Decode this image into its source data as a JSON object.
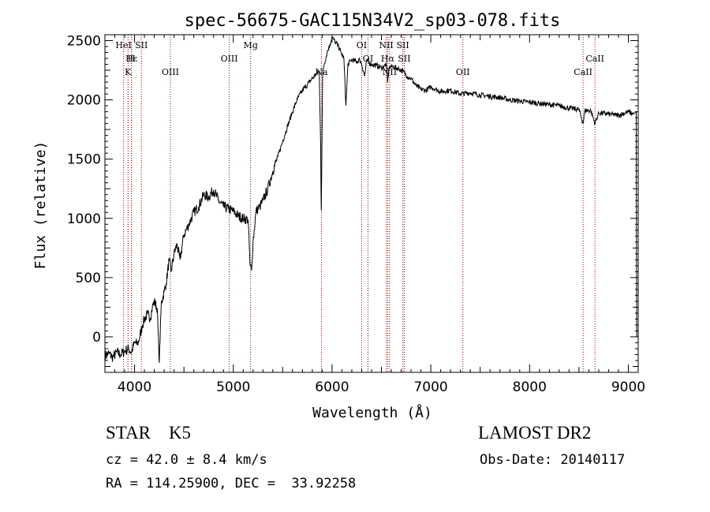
{
  "chart_data": {
    "type": "line",
    "title": "spec-56675-GAC115N34V2_sp03-078.fits",
    "xlabel": "Wavelength (Å)",
    "ylabel": "Flux (relative)",
    "xlim": [
      3700,
      9100
    ],
    "ylim": [
      -300,
      2550
    ],
    "x_ticks": [
      4000,
      5000,
      6000,
      7000,
      8000,
      9000
    ],
    "y_ticks": [
      0,
      500,
      1000,
      1500,
      2000,
      2500
    ],
    "grid": false,
    "line_color": "#000000",
    "marker_color": "#8b0000",
    "series": [
      {
        "points": [
          [
            3700,
            -160
          ],
          [
            3740,
            -140
          ],
          [
            3780,
            -175
          ],
          [
            3820,
            -130
          ],
          [
            3860,
            -150
          ],
          [
            3900,
            -120
          ],
          [
            3940,
            -100
          ],
          [
            3970,
            -130
          ],
          [
            4000,
            -50
          ],
          [
            4030,
            -60
          ],
          [
            4050,
            -10
          ],
          [
            4080,
            100
          ],
          [
            4100,
            150
          ],
          [
            4130,
            190
          ],
          [
            4160,
            160
          ],
          [
            4180,
            250
          ],
          [
            4200,
            300
          ],
          [
            4230,
            240
          ],
          [
            4250,
            -220
          ],
          [
            4270,
            280
          ],
          [
            4300,
            380
          ],
          [
            4320,
            450
          ],
          [
            4350,
            650
          ],
          [
            4370,
            550
          ],
          [
            4400,
            700
          ],
          [
            4430,
            780
          ],
          [
            4460,
            650
          ],
          [
            4500,
            860
          ],
          [
            4550,
            950
          ],
          [
            4600,
            1050
          ],
          [
            4650,
            1100
          ],
          [
            4700,
            1200
          ],
          [
            4750,
            1180
          ],
          [
            4800,
            1240
          ],
          [
            4850,
            1150
          ],
          [
            4900,
            1100
          ],
          [
            4950,
            1080
          ],
          [
            5000,
            1060
          ],
          [
            5050,
            1020
          ],
          [
            5100,
            1000
          ],
          [
            5150,
            990
          ],
          [
            5170,
            600
          ],
          [
            5185,
            560
          ],
          [
            5200,
            800
          ],
          [
            5230,
            1060
          ],
          [
            5270,
            1100
          ],
          [
            5300,
            1150
          ],
          [
            5350,
            1250
          ],
          [
            5400,
            1400
          ],
          [
            5450,
            1520
          ],
          [
            5500,
            1650
          ],
          [
            5550,
            1780
          ],
          [
            5600,
            1900
          ],
          [
            5650,
            2010
          ],
          [
            5700,
            2080
          ],
          [
            5750,
            2130
          ],
          [
            5800,
            2180
          ],
          [
            5840,
            2220
          ],
          [
            5870,
            2240
          ],
          [
            5885,
            1600
          ],
          [
            5890,
            1070
          ],
          [
            5895,
            1400
          ],
          [
            5905,
            2240
          ],
          [
            5920,
            2300
          ],
          [
            5950,
            2400
          ],
          [
            5980,
            2470
          ],
          [
            6000,
            2530
          ],
          [
            6030,
            2490
          ],
          [
            6060,
            2460
          ],
          [
            6090,
            2400
          ],
          [
            6120,
            2350
          ],
          [
            6140,
            1950
          ],
          [
            6160,
            2300
          ],
          [
            6200,
            2340
          ],
          [
            6250,
            2320
          ],
          [
            6280,
            2340
          ],
          [
            6300,
            2300
          ],
          [
            6330,
            2200
          ],
          [
            6350,
            2330
          ],
          [
            6400,
            2300
          ],
          [
            6450,
            2290
          ],
          [
            6500,
            2270
          ],
          [
            6550,
            2300
          ],
          [
            6563,
            2150
          ],
          [
            6580,
            2280
          ],
          [
            6620,
            2280
          ],
          [
            6680,
            2260
          ],
          [
            6720,
            2240
          ],
          [
            6760,
            2200
          ],
          [
            6800,
            2180
          ],
          [
            6850,
            2120
          ],
          [
            6900,
            2090
          ],
          [
            6950,
            2080
          ],
          [
            7000,
            2110
          ],
          [
            7050,
            2090
          ],
          [
            7100,
            2070
          ],
          [
            7200,
            2080
          ],
          [
            7300,
            2050
          ],
          [
            7400,
            2060
          ],
          [
            7500,
            2040
          ],
          [
            7600,
            2030
          ],
          [
            7700,
            2020
          ],
          [
            7800,
            2000
          ],
          [
            7900,
            1990
          ],
          [
            8000,
            1980
          ],
          [
            8100,
            1970
          ],
          [
            8200,
            1960
          ],
          [
            8300,
            1950
          ],
          [
            8400,
            1930
          ],
          [
            8500,
            1920
          ],
          [
            8542,
            1800
          ],
          [
            8560,
            1910
          ],
          [
            8620,
            1910
          ],
          [
            8662,
            1800
          ],
          [
            8700,
            1890
          ],
          [
            8800,
            1880
          ],
          [
            8900,
            1870
          ],
          [
            9000,
            1900
          ],
          [
            9050,
            1880
          ]
        ]
      }
    ],
    "spectral_lines": [
      {
        "label": "Hε",
        "wavelength": 3970,
        "row": 2
      },
      {
        "label": "HeI",
        "wavelength": 3889,
        "row": 1
      },
      {
        "label": "SII",
        "wavelength": 4069,
        "row": 1
      },
      {
        "label": "H",
        "wavelength": 3968,
        "row": 2
      },
      {
        "label": "K",
        "wavelength": 3934,
        "row": 3
      },
      {
        "label": "OIII",
        "wavelength": 4363,
        "row": 3
      },
      {
        "label": "OIII",
        "wavelength": 4959,
        "row": 2
      },
      {
        "label": "Mg",
        "wavelength": 5175,
        "row": 1
      },
      {
        "label": "Na",
        "wavelength": 5893,
        "row": 3
      },
      {
        "label": "OI",
        "wavelength": 6300,
        "row": 1
      },
      {
        "label": "OI",
        "wavelength": 6364,
        "row": 2
      },
      {
        "label": "NII",
        "wavelength": 6548,
        "row": 1
      },
      {
        "label": "NII",
        "wavelength": 6583,
        "row": 3
      },
      {
        "label": "Hα",
        "wavelength": 6563,
        "row": 2
      },
      {
        "label": "SII",
        "wavelength": 6716,
        "row": 1
      },
      {
        "label": "SII",
        "wavelength": 6731,
        "row": 2
      },
      {
        "label": "OII",
        "wavelength": 7325,
        "row": 3
      },
      {
        "label": "CaII",
        "wavelength": 8542,
        "row": 3
      },
      {
        "label": "CaII",
        "wavelength": 8662,
        "row": 2
      }
    ]
  },
  "info": {
    "class_line": "STAR    K5",
    "survey_line": "LAMOST DR2",
    "cz_line": "cz = 42.0 ± 8.4 km/s",
    "obs_line": "Obs-Date: 20140117",
    "radec_line": "RA = 114.25900, DEC =  33.92258"
  }
}
